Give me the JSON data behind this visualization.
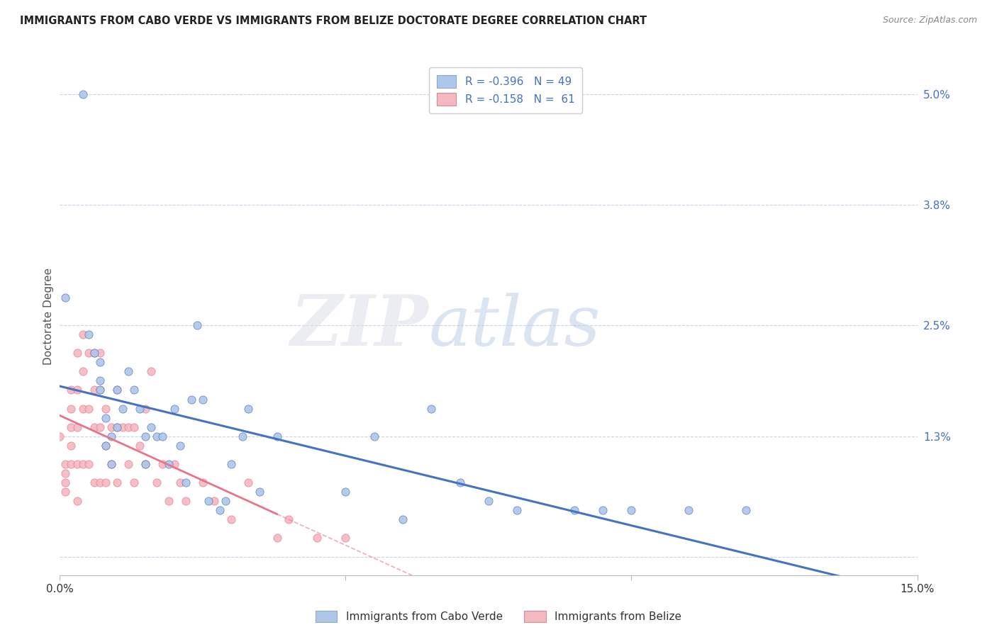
{
  "title": "IMMIGRANTS FROM CABO VERDE VS IMMIGRANTS FROM BELIZE DOCTORATE DEGREE CORRELATION CHART",
  "source": "Source: ZipAtlas.com",
  "ylabel_label": "Doctorate Degree",
  "right_ytick_vals": [
    0.0,
    0.013,
    0.025,
    0.038,
    0.05
  ],
  "right_ytick_labels": [
    "",
    "1.3%",
    "2.5%",
    "3.8%",
    "5.0%"
  ],
  "xlim": [
    0.0,
    0.15
  ],
  "ylim": [
    -0.002,
    0.054
  ],
  "cabo_verde_R": -0.396,
  "cabo_verde_N": 49,
  "belize_R": -0.158,
  "belize_N": 61,
  "cabo_verde_color": "#aec6e8",
  "belize_color": "#f4b8c1",
  "cabo_verde_line_color": "#4472c4",
  "belize_line_color": "#e8748a",
  "watermark_zip": "ZIP",
  "watermark_atlas": "atlas",
  "background_color": "#ffffff",
  "grid_color": "#c8d4e8",
  "cabo_verde_x": [
    0.001,
    0.004,
    0.005,
    0.006,
    0.007,
    0.007,
    0.007,
    0.008,
    0.008,
    0.009,
    0.009,
    0.01,
    0.01,
    0.011,
    0.012,
    0.013,
    0.014,
    0.015,
    0.015,
    0.016,
    0.017,
    0.018,
    0.019,
    0.02,
    0.021,
    0.022,
    0.023,
    0.024,
    0.025,
    0.026,
    0.028,
    0.029,
    0.03,
    0.032,
    0.033,
    0.035,
    0.038,
    0.05,
    0.055,
    0.06,
    0.065,
    0.07,
    0.075,
    0.08,
    0.09,
    0.095,
    0.1,
    0.11,
    0.12
  ],
  "cabo_verde_y": [
    0.028,
    0.05,
    0.024,
    0.022,
    0.021,
    0.019,
    0.018,
    0.015,
    0.012,
    0.013,
    0.01,
    0.018,
    0.014,
    0.016,
    0.02,
    0.018,
    0.016,
    0.013,
    0.01,
    0.014,
    0.013,
    0.013,
    0.01,
    0.016,
    0.012,
    0.008,
    0.017,
    0.025,
    0.017,
    0.006,
    0.005,
    0.006,
    0.01,
    0.013,
    0.016,
    0.007,
    0.013,
    0.007,
    0.013,
    0.004,
    0.016,
    0.008,
    0.006,
    0.005,
    0.005,
    0.005,
    0.005,
    0.005,
    0.005
  ],
  "belize_x": [
    0.0,
    0.001,
    0.001,
    0.001,
    0.001,
    0.002,
    0.002,
    0.002,
    0.002,
    0.002,
    0.003,
    0.003,
    0.003,
    0.003,
    0.003,
    0.004,
    0.004,
    0.004,
    0.004,
    0.005,
    0.005,
    0.005,
    0.006,
    0.006,
    0.006,
    0.006,
    0.007,
    0.007,
    0.007,
    0.007,
    0.008,
    0.008,
    0.008,
    0.009,
    0.009,
    0.01,
    0.01,
    0.01,
    0.011,
    0.012,
    0.012,
    0.013,
    0.013,
    0.014,
    0.015,
    0.015,
    0.016,
    0.017,
    0.018,
    0.019,
    0.02,
    0.021,
    0.022,
    0.025,
    0.027,
    0.03,
    0.033,
    0.038,
    0.04,
    0.045,
    0.05
  ],
  "belize_y": [
    0.013,
    0.01,
    0.009,
    0.008,
    0.007,
    0.018,
    0.016,
    0.014,
    0.012,
    0.01,
    0.022,
    0.018,
    0.014,
    0.01,
    0.006,
    0.024,
    0.02,
    0.016,
    0.01,
    0.022,
    0.016,
    0.01,
    0.022,
    0.018,
    0.014,
    0.008,
    0.022,
    0.018,
    0.014,
    0.008,
    0.016,
    0.012,
    0.008,
    0.014,
    0.01,
    0.018,
    0.014,
    0.008,
    0.014,
    0.014,
    0.01,
    0.014,
    0.008,
    0.012,
    0.016,
    0.01,
    0.02,
    0.008,
    0.01,
    0.006,
    0.01,
    0.008,
    0.006,
    0.008,
    0.006,
    0.004,
    0.008,
    0.002,
    0.004,
    0.002,
    0.002
  ],
  "cabo_line_x0": 0.0,
  "cabo_line_y0": 0.0155,
  "cabo_line_x1": 0.15,
  "cabo_line_y1": -0.002,
  "belize_line_x0": 0.0,
  "belize_line_y0": 0.0135,
  "belize_line_x1": 0.055,
  "belize_line_y1": 0.005
}
